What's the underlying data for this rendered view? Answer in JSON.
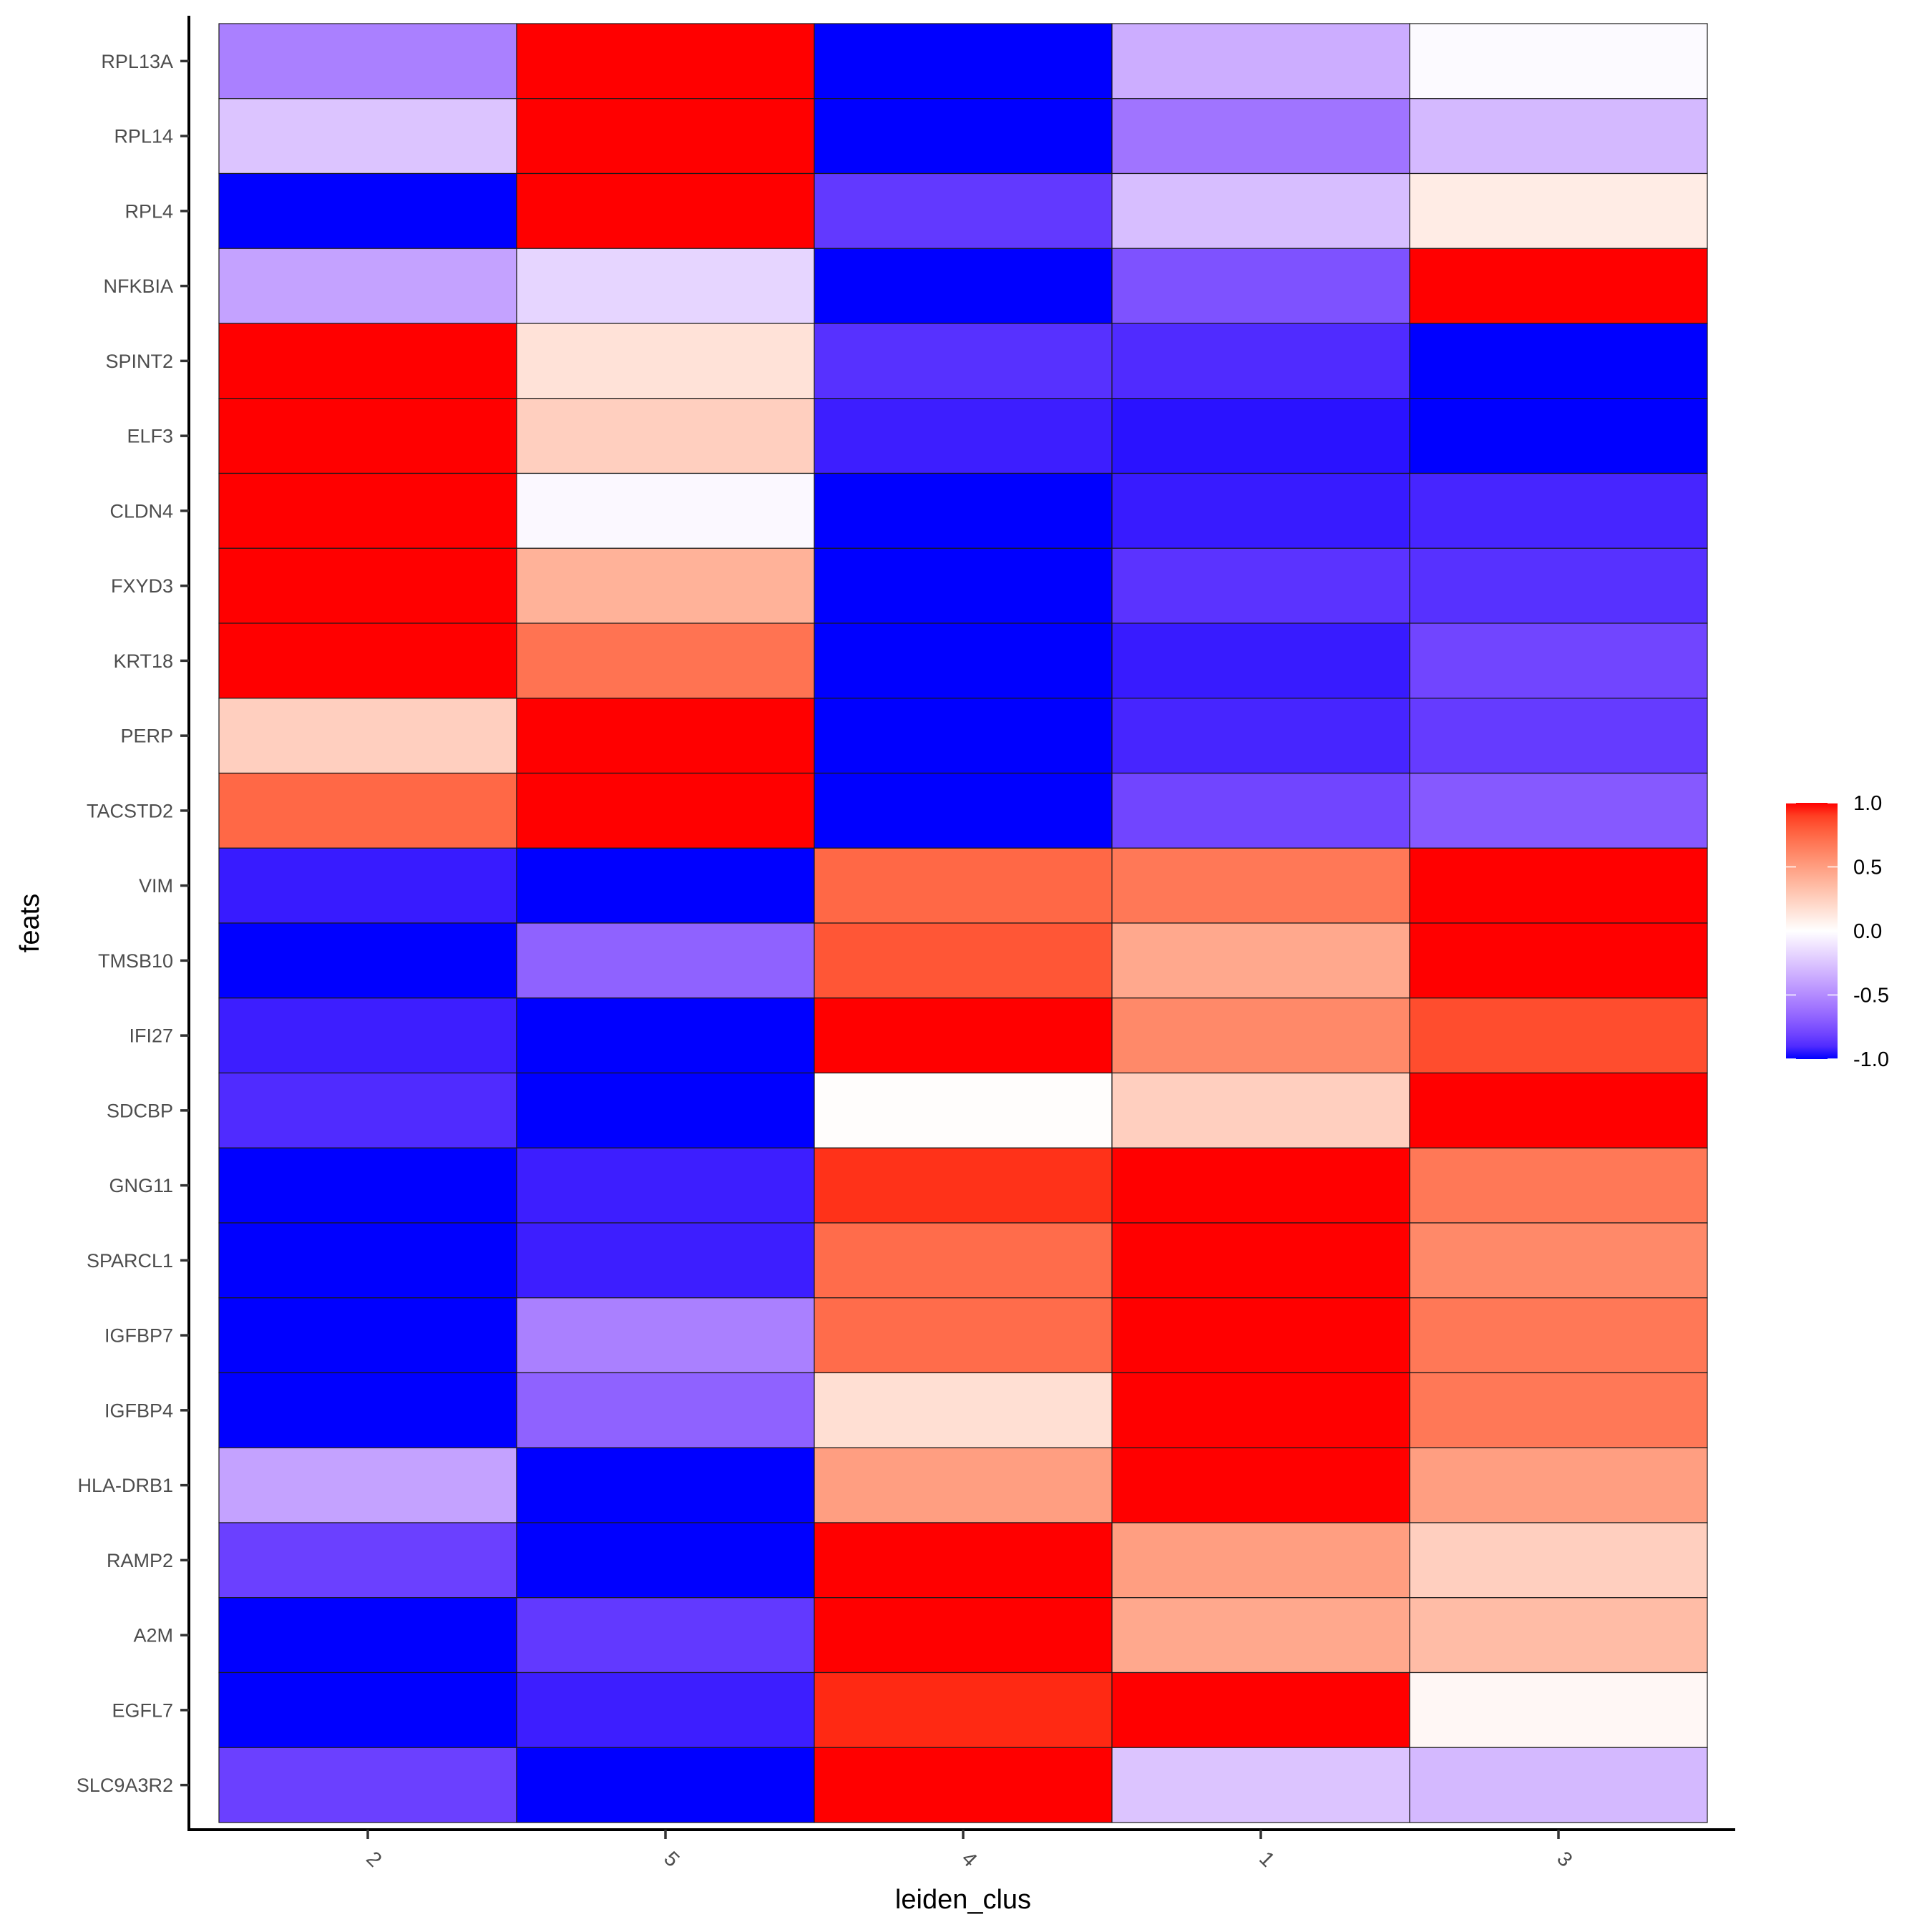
{
  "chart_data": {
    "type": "heatmap",
    "title": "",
    "xlabel": "leiden_clus",
    "ylabel": "feats",
    "x_categories": [
      "2",
      "5",
      "4",
      "1",
      "3"
    ],
    "y_categories": [
      "RPL13A",
      "RPL14",
      "RPL4",
      "NFKBIA",
      "SPINT2",
      "ELF3",
      "CLDN4",
      "FXYD3",
      "KRT18",
      "PERP",
      "TACSTD2",
      "VIM",
      "TMSB10",
      "IFI27",
      "SDCBP",
      "GNG11",
      "SPARCL1",
      "IGFBP7",
      "IGFBP4",
      "HLA-DRB1",
      "RAMP2",
      "A2M",
      "EGFL7",
      "SLC9A3R2"
    ],
    "values": [
      [
        -0.55,
        1.0,
        -1.0,
        -0.35,
        -0.02
      ],
      [
        -0.25,
        1.0,
        -1.0,
        -0.6,
        -0.3
      ],
      [
        -1.0,
        1.0,
        -0.85,
        -0.28,
        0.1
      ],
      [
        -0.4,
        -0.18,
        -1.0,
        -0.75,
        1.0
      ],
      [
        1.0,
        0.15,
        -0.88,
        -0.9,
        -1.0
      ],
      [
        1.0,
        0.25,
        -0.94,
        -0.97,
        -1.0
      ],
      [
        1.0,
        -0.03,
        -1.0,
        -0.95,
        -0.92
      ],
      [
        1.0,
        0.4,
        -1.0,
        -0.87,
        -0.88
      ],
      [
        1.0,
        0.7,
        -1.0,
        -0.95,
        -0.8
      ],
      [
        0.25,
        1.0,
        -1.0,
        -0.92,
        -0.84
      ],
      [
        0.75,
        1.0,
        -1.0,
        -0.8,
        -0.72
      ],
      [
        -0.95,
        -1.0,
        0.75,
        0.68,
        1.0
      ],
      [
        -1.0,
        -0.68,
        0.82,
        0.45,
        1.0
      ],
      [
        -0.94,
        -1.0,
        1.0,
        0.6,
        0.85
      ],
      [
        -0.9,
        -1.0,
        0.01,
        0.25,
        1.0
      ],
      [
        -1.0,
        -0.94,
        0.93,
        1.0,
        0.68
      ],
      [
        -1.0,
        -0.94,
        0.73,
        1.0,
        0.6
      ],
      [
        -1.0,
        -0.55,
        0.73,
        1.0,
        0.68
      ],
      [
        -1.0,
        -0.68,
        0.17,
        1.0,
        0.68
      ],
      [
        -0.4,
        -1.0,
        0.5,
        1.0,
        0.5
      ],
      [
        -0.82,
        -1.0,
        1.0,
        0.5,
        0.25
      ],
      [
        -1.0,
        -0.85,
        1.0,
        0.45,
        0.35
      ],
      [
        -1.0,
        -0.94,
        0.95,
        1.0,
        0.04
      ],
      [
        -0.82,
        -1.0,
        1.0,
        -0.25,
        -0.3
      ]
    ],
    "color_scale": {
      "low": "#0000FF",
      "mid": "#FFFFFF",
      "high": "#FF0000",
      "limits": [
        -1.0,
        1.0
      ],
      "midpoint": 0.0
    },
    "legend": {
      "position": "right",
      "title": "",
      "ticks": [
        1.0,
        0.5,
        0.0,
        -0.5,
        -1.0
      ],
      "tick_labels": [
        "1.0",
        "0.5",
        "0.0",
        "-0.5",
        "-1.0"
      ]
    },
    "grid": false
  }
}
